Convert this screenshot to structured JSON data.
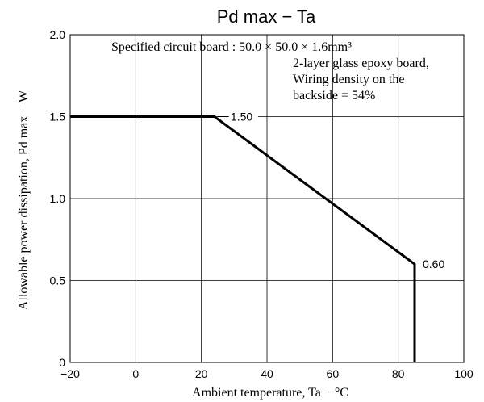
{
  "chart_data": {
    "type": "line",
    "title": "Pd max  −  Ta",
    "xlabel": "Ambient temperature, Ta  −  °C",
    "ylabel": "Allowable power dissipation, Pd max  −  W",
    "xlim": [
      -20,
      100
    ],
    "ylim": [
      0,
      2.0
    ],
    "x_ticks": [
      -20,
      0,
      20,
      40,
      60,
      80,
      100
    ],
    "x_tick_labels": [
      "−20",
      "0",
      "20",
      "40",
      "60",
      "80",
      "100"
    ],
    "y_ticks": [
      0,
      0.5,
      1.0,
      1.5,
      2.0
    ],
    "y_tick_labels": [
      "0",
      "0.5",
      "1.0",
      "1.5",
      "2.0"
    ],
    "grid": true,
    "series": [
      {
        "x": [
          -20,
          24,
          85,
          85
        ],
        "y": [
          1.5,
          1.5,
          0.6,
          0
        ]
      }
    ],
    "annotations": [
      {
        "text": "1.50",
        "x": 24,
        "y": 1.5
      },
      {
        "text": "0.60",
        "x": 85,
        "y": 0.6
      }
    ],
    "note": {
      "line1": "Specified circuit board : 50.0 × 50.0 × 1.6mm³",
      "line2": "2-layer glass epoxy board,",
      "line3": "Wiring density on the",
      "line4": "backside = 54%"
    },
    "colors": {
      "line": "#000000",
      "grid": "#000000",
      "background": "#ffffff"
    }
  }
}
